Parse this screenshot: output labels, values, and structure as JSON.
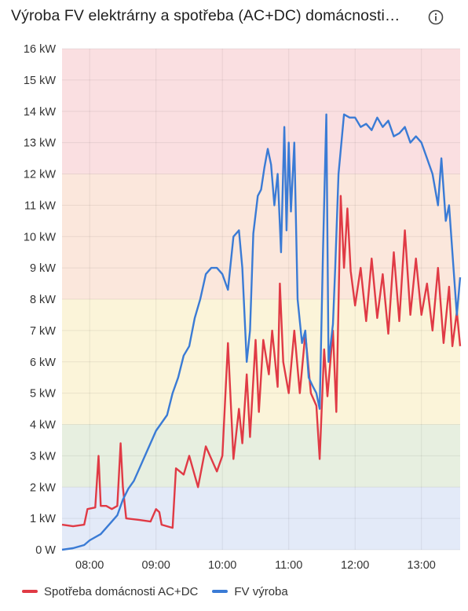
{
  "card": {
    "title": "Výroba FV elektrárny a spotřeba (AC+DC) domácnosti…",
    "info_icon": "info-circle-icon"
  },
  "chart_data": {
    "type": "line",
    "xlabel": "",
    "ylabel": "",
    "xlim": [
      "07:35",
      "13:35"
    ],
    "ylim": [
      0,
      16
    ],
    "grid": true,
    "legend_position": "bottom-left",
    "x_ticks": [
      "08:00",
      "09:00",
      "10:00",
      "11:00",
      "12:00",
      "13:00"
    ],
    "y_ticks": [
      "0 W",
      "1 kW",
      "2 kW",
      "3 kW",
      "4 kW",
      "5 kW",
      "6 kW",
      "7 kW",
      "8 kW",
      "9 kW",
      "10 kW",
      "11 kW",
      "12 kW",
      "13 kW",
      "14 kW",
      "15 kW",
      "16 kW"
    ],
    "background_bands": [
      {
        "from": 0,
        "to": 2,
        "color": "#e3eaf8"
      },
      {
        "from": 2,
        "to": 4,
        "color": "#e7efe0"
      },
      {
        "from": 4,
        "to": 8,
        "color": "#fbf4d9"
      },
      {
        "from": 8,
        "to": 12,
        "color": "#fbe7dc"
      },
      {
        "from": 12,
        "to": 16,
        "color": "#fadfe1"
      }
    ],
    "series": [
      {
        "name": "Spotřeba domácnosti AC+DC",
        "color": "#e03a45",
        "points": [
          [
            "07:35",
            0.8
          ],
          [
            "07:45",
            0.75
          ],
          [
            "07:55",
            0.8
          ],
          [
            "07:58",
            1.3
          ],
          [
            "08:05",
            1.35
          ],
          [
            "08:08",
            3.0
          ],
          [
            "08:10",
            1.4
          ],
          [
            "08:15",
            1.4
          ],
          [
            "08:20",
            1.3
          ],
          [
            "08:25",
            1.4
          ],
          [
            "08:28",
            3.4
          ],
          [
            "08:30",
            2.0
          ],
          [
            "08:33",
            1.0
          ],
          [
            "08:45",
            0.95
          ],
          [
            "08:55",
            0.9
          ],
          [
            "09:00",
            1.3
          ],
          [
            "09:03",
            1.2
          ],
          [
            "09:05",
            0.8
          ],
          [
            "09:15",
            0.7
          ],
          [
            "09:18",
            2.6
          ],
          [
            "09:25",
            2.4
          ],
          [
            "09:30",
            3.0
          ],
          [
            "09:38",
            2.0
          ],
          [
            "09:45",
            3.3
          ],
          [
            "09:55",
            2.5
          ],
          [
            "10:00",
            3.0
          ],
          [
            "10:05",
            6.6
          ],
          [
            "10:10",
            2.9
          ],
          [
            "10:15",
            4.5
          ],
          [
            "10:18",
            3.4
          ],
          [
            "10:22",
            5.6
          ],
          [
            "10:25",
            3.6
          ],
          [
            "10:30",
            6.7
          ],
          [
            "10:33",
            4.4
          ],
          [
            "10:37",
            6.7
          ],
          [
            "10:42",
            5.6
          ],
          [
            "10:45",
            7.0
          ],
          [
            "10:50",
            5.2
          ],
          [
            "10:52",
            8.5
          ],
          [
            "10:55",
            6.0
          ],
          [
            "11:00",
            5.0
          ],
          [
            "11:05",
            7.0
          ],
          [
            "11:10",
            5.0
          ],
          [
            "11:15",
            6.9
          ],
          [
            "11:20",
            5.0
          ],
          [
            "11:25",
            4.6
          ],
          [
            "11:28",
            2.9
          ],
          [
            "11:32",
            6.4
          ],
          [
            "11:35",
            4.9
          ],
          [
            "11:40",
            7.0
          ],
          [
            "11:43",
            4.4
          ],
          [
            "11:47",
            11.3
          ],
          [
            "11:50",
            9.0
          ],
          [
            "11:53",
            10.9
          ],
          [
            "11:56",
            8.9
          ],
          [
            "12:00",
            7.8
          ],
          [
            "12:05",
            9.0
          ],
          [
            "12:10",
            7.3
          ],
          [
            "12:15",
            9.3
          ],
          [
            "12:20",
            7.4
          ],
          [
            "12:25",
            8.8
          ],
          [
            "12:30",
            6.9
          ],
          [
            "12:35",
            9.5
          ],
          [
            "12:40",
            7.3
          ],
          [
            "12:45",
            10.2
          ],
          [
            "12:50",
            7.5
          ],
          [
            "12:55",
            9.3
          ],
          [
            "13:00",
            7.5
          ],
          [
            "13:05",
            8.5
          ],
          [
            "13:10",
            7.0
          ],
          [
            "13:15",
            9.0
          ],
          [
            "13:20",
            6.6
          ],
          [
            "13:25",
            8.4
          ],
          [
            "13:28",
            6.5
          ],
          [
            "13:32",
            7.6
          ],
          [
            "13:35",
            6.5
          ]
        ]
      },
      {
        "name": "FV výroba",
        "color": "#3a7bd5",
        "points": [
          [
            "07:35",
            0.0
          ],
          [
            "07:45",
            0.05
          ],
          [
            "07:55",
            0.15
          ],
          [
            "08:00",
            0.3
          ],
          [
            "08:10",
            0.5
          ],
          [
            "08:20",
            0.9
          ],
          [
            "08:25",
            1.1
          ],
          [
            "08:30",
            1.6
          ],
          [
            "08:35",
            1.95
          ],
          [
            "08:40",
            2.2
          ],
          [
            "08:45",
            2.6
          ],
          [
            "08:50",
            3.0
          ],
          [
            "08:55",
            3.4
          ],
          [
            "09:00",
            3.8
          ],
          [
            "09:10",
            4.3
          ],
          [
            "09:15",
            5.0
          ],
          [
            "09:20",
            5.5
          ],
          [
            "09:25",
            6.2
          ],
          [
            "09:30",
            6.5
          ],
          [
            "09:35",
            7.4
          ],
          [
            "09:40",
            8.0
          ],
          [
            "09:45",
            8.8
          ],
          [
            "09:50",
            9.0
          ],
          [
            "09:55",
            9.0
          ],
          [
            "10:00",
            8.8
          ],
          [
            "10:05",
            8.3
          ],
          [
            "10:10",
            10.0
          ],
          [
            "10:15",
            10.2
          ],
          [
            "10:18",
            9.0
          ],
          [
            "10:22",
            6.0
          ],
          [
            "10:25",
            7.0
          ],
          [
            "10:28",
            10.1
          ],
          [
            "10:32",
            11.3
          ],
          [
            "10:35",
            11.5
          ],
          [
            "10:38",
            12.2
          ],
          [
            "10:41",
            12.8
          ],
          [
            "10:44",
            12.3
          ],
          [
            "10:47",
            11.0
          ],
          [
            "10:50",
            12.0
          ],
          [
            "10:53",
            9.5
          ],
          [
            "10:56",
            13.5
          ],
          [
            "10:58",
            10.2
          ],
          [
            "11:00",
            13.0
          ],
          [
            "11:02",
            10.8
          ],
          [
            "11:05",
            13.0
          ],
          [
            "11:08",
            8.0
          ],
          [
            "11:12",
            6.6
          ],
          [
            "11:15",
            7.0
          ],
          [
            "11:18",
            5.5
          ],
          [
            "11:22",
            5.2
          ],
          [
            "11:25",
            5.0
          ],
          [
            "11:28",
            4.5
          ],
          [
            "11:31",
            9.6
          ],
          [
            "11:34",
            13.9
          ],
          [
            "11:36",
            6.0
          ],
          [
            "11:40",
            7.2
          ],
          [
            "11:42",
            9.0
          ],
          [
            "11:45",
            12.0
          ],
          [
            "11:50",
            13.9
          ],
          [
            "11:55",
            13.8
          ],
          [
            "12:00",
            13.8
          ],
          [
            "12:05",
            13.5
          ],
          [
            "12:10",
            13.6
          ],
          [
            "12:15",
            13.4
          ],
          [
            "12:20",
            13.8
          ],
          [
            "12:25",
            13.5
          ],
          [
            "12:30",
            13.7
          ],
          [
            "12:35",
            13.2
          ],
          [
            "12:40",
            13.3
          ],
          [
            "12:45",
            13.5
          ],
          [
            "12:50",
            13.0
          ],
          [
            "12:55",
            13.2
          ],
          [
            "13:00",
            13.0
          ],
          [
            "13:05",
            12.5
          ],
          [
            "13:10",
            12.0
          ],
          [
            "13:15",
            11.0
          ],
          [
            "13:18",
            12.5
          ],
          [
            "13:22",
            10.5
          ],
          [
            "13:25",
            11.0
          ],
          [
            "13:28",
            9.5
          ],
          [
            "13:32",
            7.5
          ],
          [
            "13:35",
            8.7
          ]
        ]
      }
    ]
  }
}
